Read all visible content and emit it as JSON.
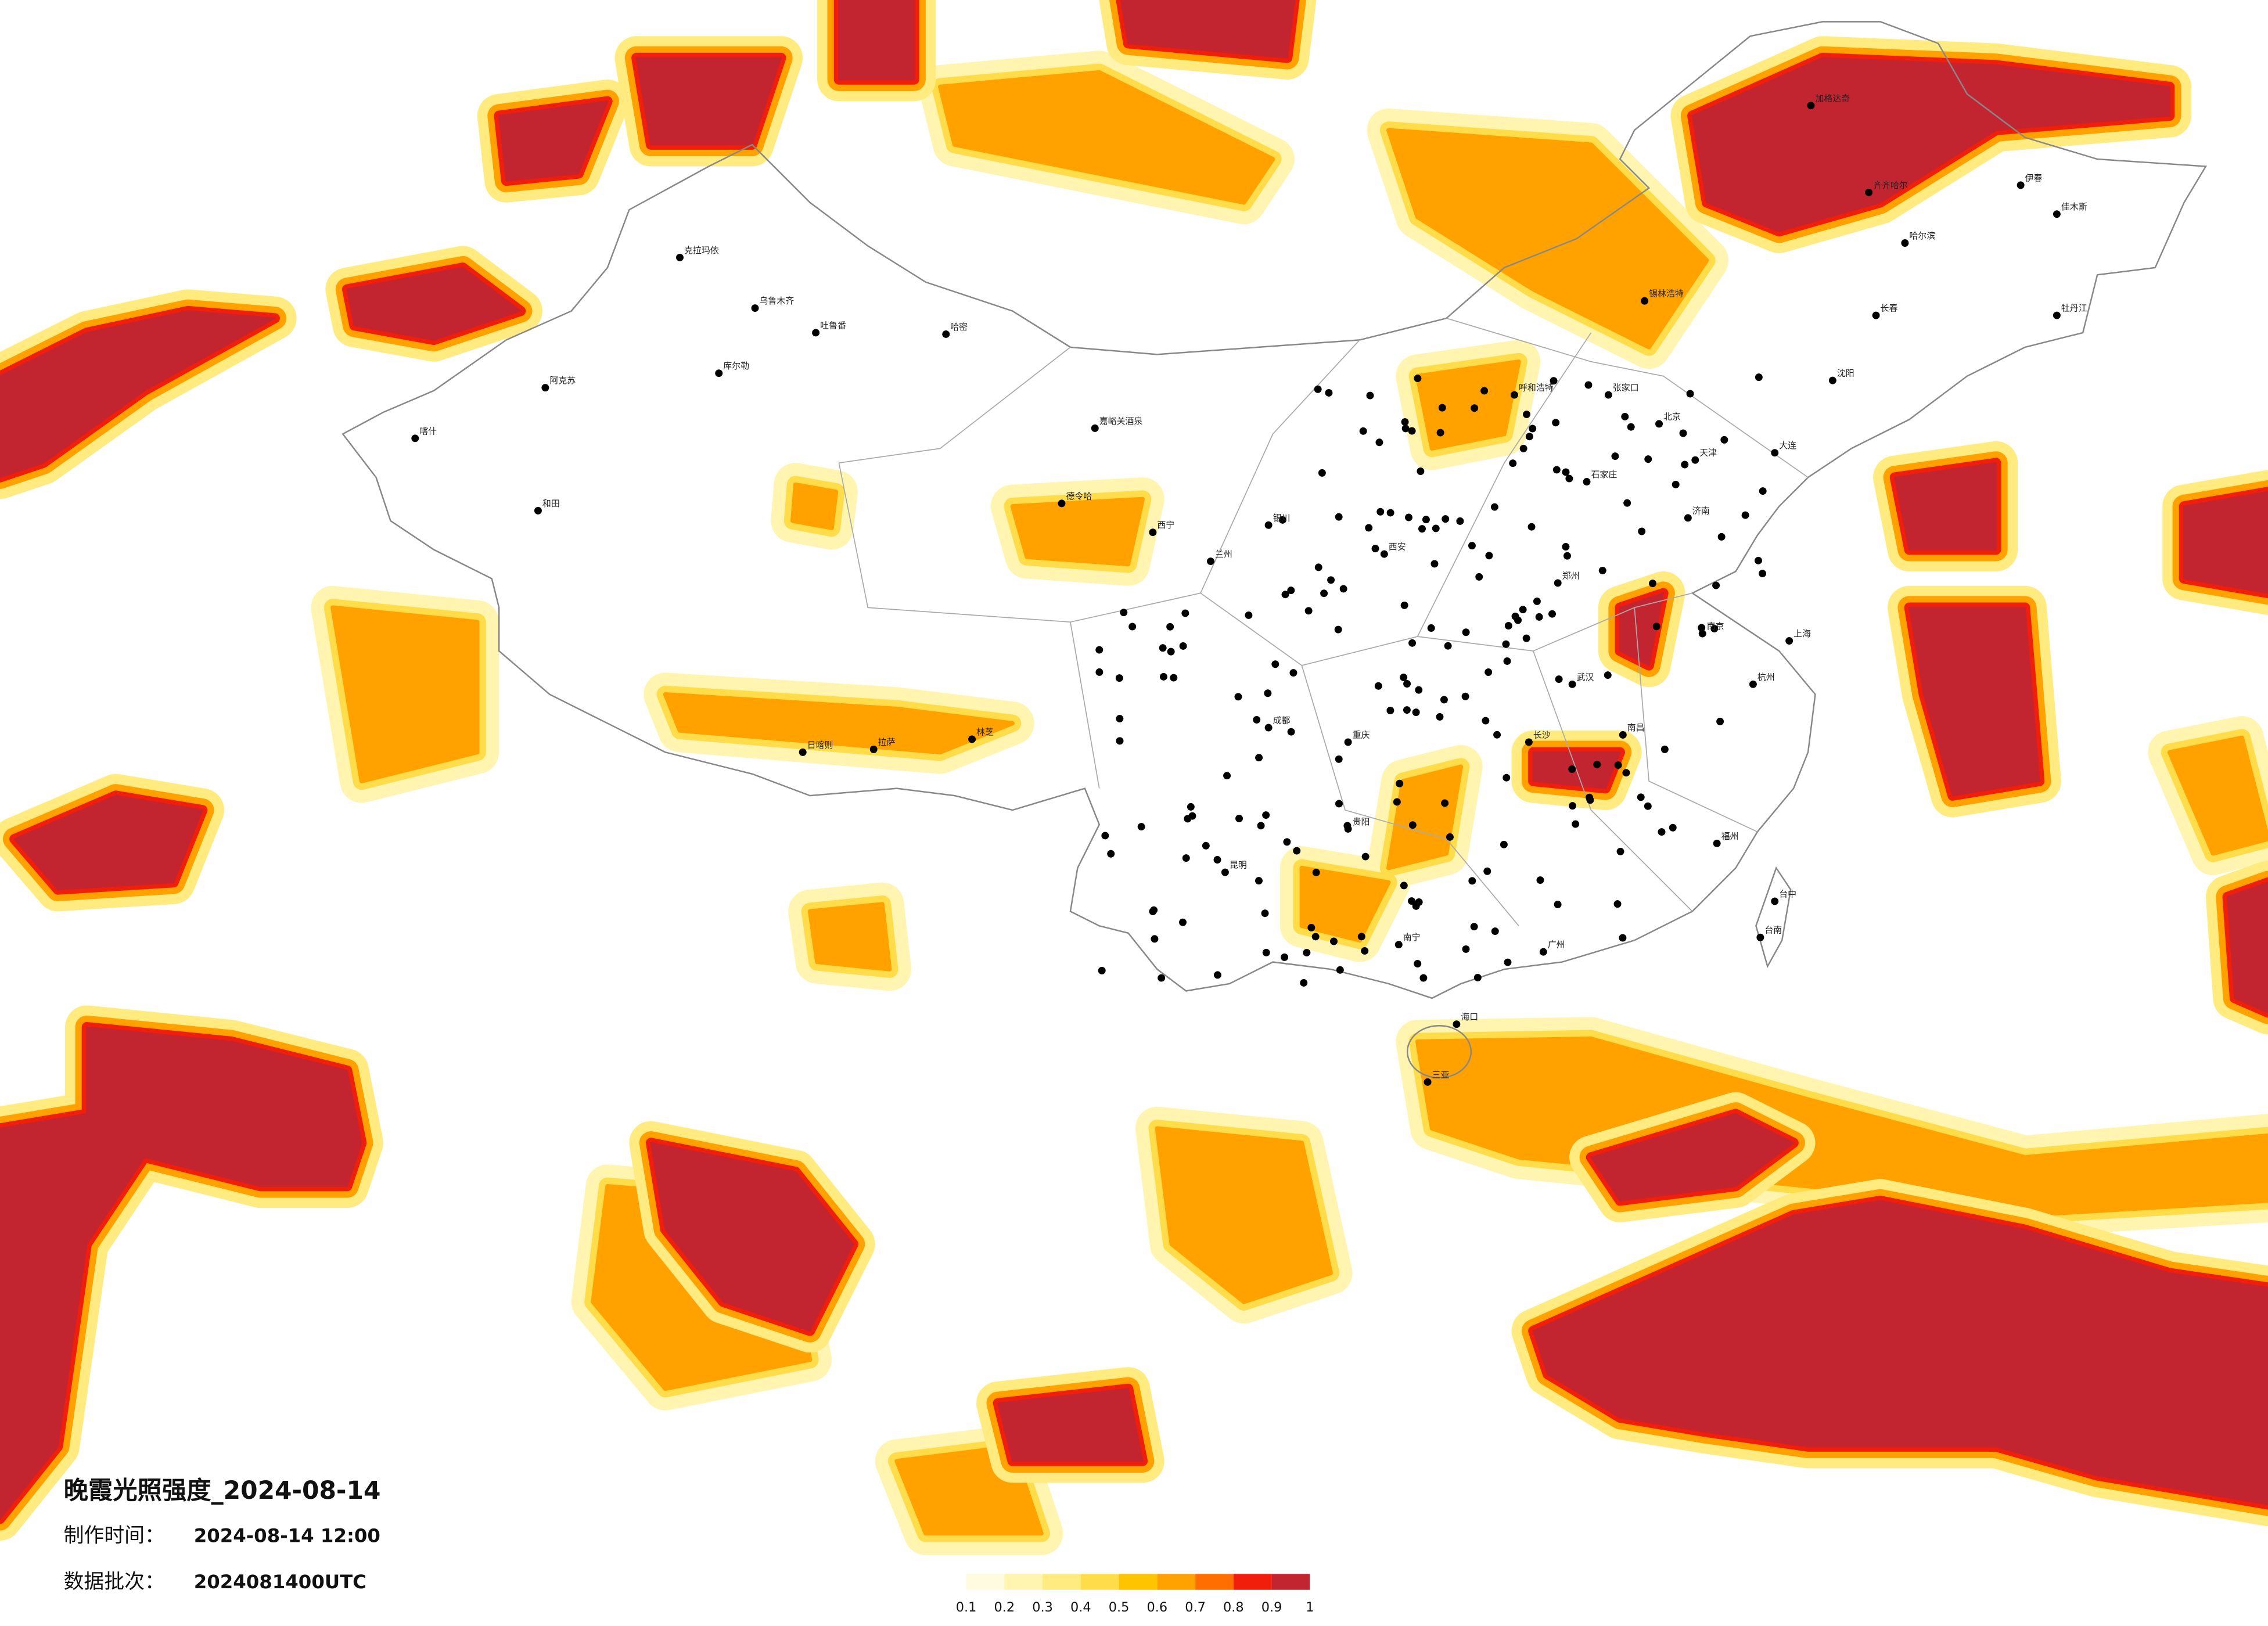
{
  "header": {
    "title": "晚霞光照强度_2024-08-14",
    "made_label": "制作时间：",
    "made_time": "2024-08-14 12:00",
    "batch_label": "数据批次：",
    "batch": "2024081400UTC"
  },
  "legend": {
    "colors": [
      "#fffbe0",
      "#fff5b0",
      "#ffeb80",
      "#ffdc4a",
      "#ffc400",
      "#ffa200",
      "#ff6e00",
      "#f01e0a",
      "#c22530"
    ],
    "ticks": [
      0.1,
      0.2,
      0.3,
      0.4,
      0.5,
      0.6,
      0.7,
      0.8,
      0.9,
      1
    ]
  },
  "cities": [
    "克拉玛依",
    "乌鲁木齐",
    "吐鲁番",
    "库尔勒",
    "阿克苏",
    "喀什",
    "和田",
    "哈密",
    "嘉峪关酒泉",
    "德令哈",
    "拉萨",
    "日喀则",
    "林芝",
    "西宁",
    "兰州",
    "银川",
    "呼和浩特",
    "张家口",
    "北京",
    "天津",
    "石家庄",
    "济南",
    "郑州",
    "西安",
    "成都",
    "重庆",
    "贵阳",
    "昆明",
    "南宁",
    "广州",
    "武汉",
    "长沙",
    "南昌",
    "杭州",
    "上海",
    "南京",
    "福州",
    "台中",
    "台南",
    "海口",
    "三亚",
    "哈尔滨",
    "齐齐哈尔",
    "长春",
    "沈阳",
    "大连",
    "加格达奇",
    "伊春",
    "佳木斯",
    "牡丹江",
    "锡林浩特"
  ]
}
